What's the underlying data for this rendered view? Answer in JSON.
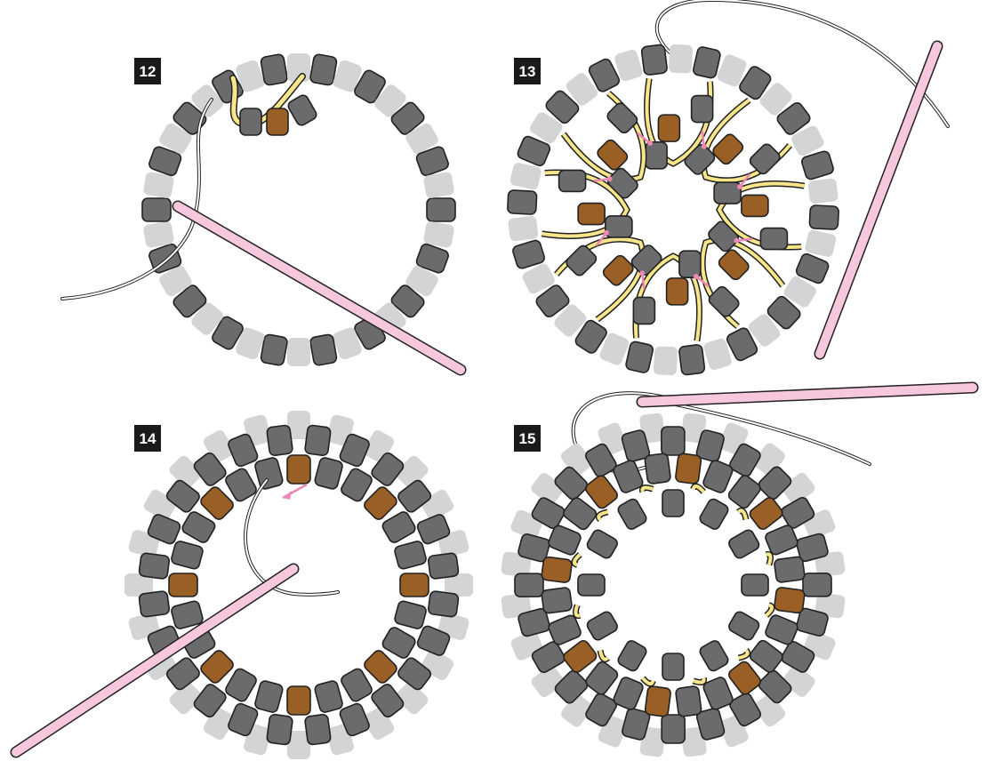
{
  "colors": {
    "bead_dark": "#6b6b6d",
    "bead_light": "#d3d4d6",
    "bead_bronze": "#9a5f25",
    "thread_yellow": "#f7e58a",
    "needle_pink": "#f7c7dd",
    "arrow_pink": "#ee87b5",
    "badge_black": "#1a1a1a",
    "outline": "#222222"
  },
  "steps": [
    {
      "number": "12",
      "description_icons": [
        "outer-bead-ring",
        "needle-icon",
        "thread"
      ]
    },
    {
      "number": "13",
      "description_icons": [
        "bead-ring",
        "inner-bead-ring",
        "thread-path-arrows",
        "needle-icon"
      ]
    },
    {
      "number": "14",
      "description_icons": [
        "bead-ring",
        "bronze-accent-beads",
        "direction-arrow",
        "needle-icon"
      ]
    },
    {
      "number": "15",
      "description_icons": [
        "completed-bead-ring",
        "needle-icon"
      ]
    }
  ]
}
